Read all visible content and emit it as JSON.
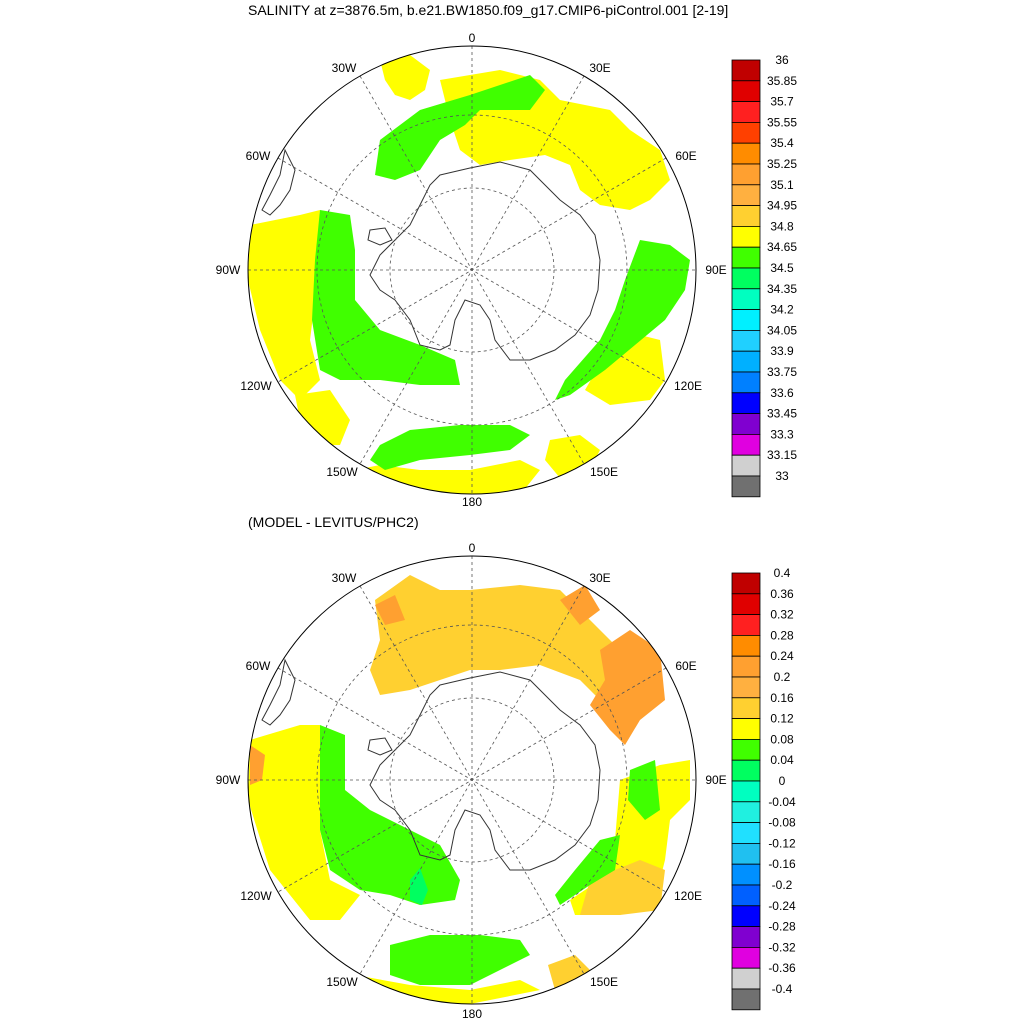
{
  "titles": {
    "main": "SALINITY at z=3876.5m, b.e21.BW1850.f09_g17.CMIP6-piControl.001 [2-19]",
    "sub": "(MODEL - LEVITUS/PHC2)"
  },
  "lon_labels": [
    "0",
    "30E",
    "60E",
    "90E",
    "120E",
    "150E",
    "180",
    "150W",
    "120W",
    "90W",
    "60W",
    "30W"
  ],
  "colors": {
    "land_outline": "#333333",
    "grid": "#555555",
    "contour": "#000000"
  },
  "colorbars": [
    {
      "name": "salinity-colorbar",
      "labels": [
        "36",
        "35.85",
        "35.7",
        "35.55",
        "35.4",
        "35.25",
        "35.1",
        "34.95",
        "34.8",
        "34.65",
        "34.5",
        "34.35",
        "34.2",
        "34.05",
        "33.9",
        "33.75",
        "33.6",
        "33.45",
        "33.3",
        "33.15",
        "33"
      ],
      "colors": [
        "#c00000",
        "#e00000",
        "#ff2020",
        "#ff4000",
        "#ff8c00",
        "#ffa030",
        "#ffb040",
        "#ffd030",
        "#ffff00",
        "#40ff00",
        "#00ff60",
        "#00ffc0",
        "#00f0ff",
        "#20d0ff",
        "#00b0ff",
        "#0080ff",
        "#0000ff",
        "#8000d0",
        "#e000e0",
        "#d0d0d0"
      ],
      "bottom_color": "#707070"
    },
    {
      "name": "difference-colorbar",
      "labels": [
        "0.4",
        "0.36",
        "0.32",
        "0.28",
        "0.24",
        "0.2",
        "0.16",
        "0.12",
        "0.08",
        "0.04",
        "0",
        "-0.04",
        "-0.08",
        "-0.12",
        "-0.16",
        "-0.2",
        "-0.24",
        "-0.28",
        "-0.32",
        "-0.36",
        "-0.4"
      ],
      "colors": [
        "#c00000",
        "#e00000",
        "#ff2020",
        "#ff8c00",
        "#ffa030",
        "#ffb040",
        "#ffd030",
        "#ffff00",
        "#40ff00",
        "#00ff60",
        "#00ffc0",
        "#20f0e0",
        "#20e0ff",
        "#20c0f0",
        "#0090ff",
        "#0060ff",
        "#0000ff",
        "#8000d0",
        "#e000e0",
        "#d0d0d0"
      ],
      "bottom_color": "#707070"
    }
  ]
}
